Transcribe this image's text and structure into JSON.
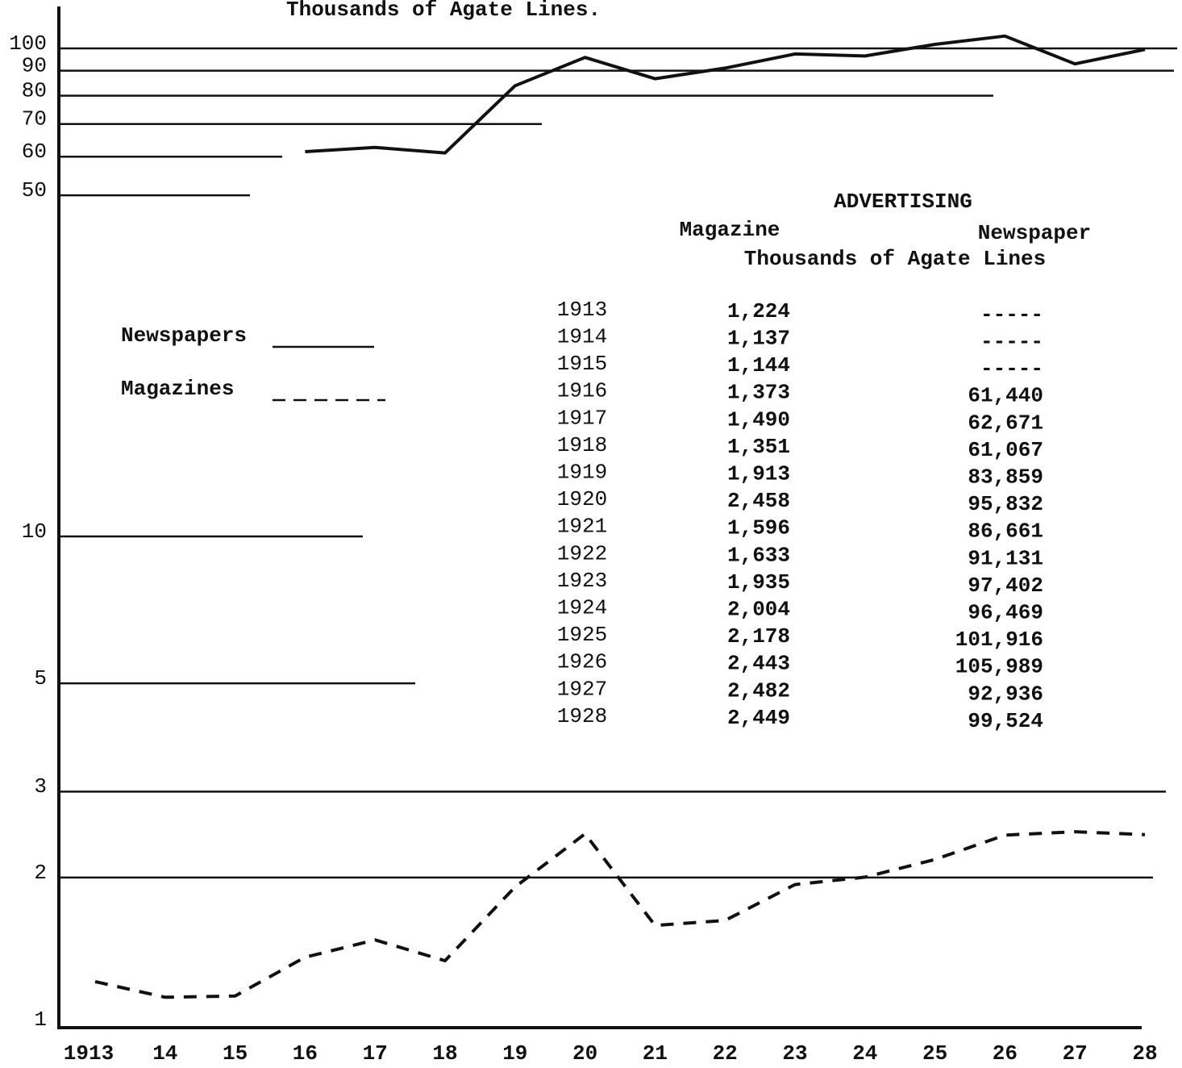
{
  "chart_data": {
    "type": "line",
    "title": "Thousands of Agate Lines.",
    "categories": [
      "1913",
      "14",
      "15",
      "16",
      "17",
      "18",
      "19",
      "20",
      "21",
      "22",
      "23",
      "24",
      "25",
      "26",
      "27",
      "28"
    ],
    "series": [
      {
        "name": "Newspapers",
        "color": "#111111",
        "dash": false,
        "values": [
          null,
          null,
          null,
          61.44,
          62.671,
          61.067,
          83.859,
          95.832,
          86.661,
          91.131,
          97.402,
          96.469,
          101.916,
          105.989,
          92.936,
          99.524
        ]
      },
      {
        "name": "Magazines",
        "color": "#111111",
        "dash": true,
        "values": [
          1.224,
          1.137,
          1.144,
          1.373,
          1.49,
          1.351,
          1.913,
          2.458,
          1.596,
          1.633,
          1.935,
          2.004,
          2.178,
          2.443,
          2.482,
          2.449
        ]
      }
    ],
    "log_y": true,
    "ylim": [
      1,
      100
    ],
    "yticks": [
      1,
      2,
      3,
      5,
      10,
      50,
      60,
      70,
      80,
      90,
      100
    ],
    "grid": true
  },
  "table": {
    "title": "ADVERTISING",
    "columns": [
      "Magazine",
      "Newspaper"
    ],
    "unit": "Thousands of Agate Lines",
    "rows": [
      [
        "1913",
        "1,224",
        "-----"
      ],
      [
        "1914",
        "1,137",
        "-----"
      ],
      [
        "1915",
        "1,144",
        "-----"
      ],
      [
        "1916",
        "1,373",
        "61,440"
      ],
      [
        "1917",
        "1,490",
        "62,671"
      ],
      [
        "1918",
        "1,351",
        "61,067"
      ],
      [
        "1919",
        "1,913",
        "83,859"
      ],
      [
        "1920",
        "2,458",
        "95,832"
      ],
      [
        "1921",
        "1,596",
        "86,661"
      ],
      [
        "1922",
        "1,633",
        "91,131"
      ],
      [
        "1923",
        "1,935",
        "97,402"
      ],
      [
        "1924",
        "2,004",
        "96,469"
      ],
      [
        "1925",
        "2,178",
        "101,916"
      ],
      [
        "1926",
        "2,443",
        "105,989"
      ],
      [
        "1927",
        "2,482",
        "92,936"
      ],
      [
        "1928",
        "2,449",
        "99,524"
      ]
    ]
  }
}
